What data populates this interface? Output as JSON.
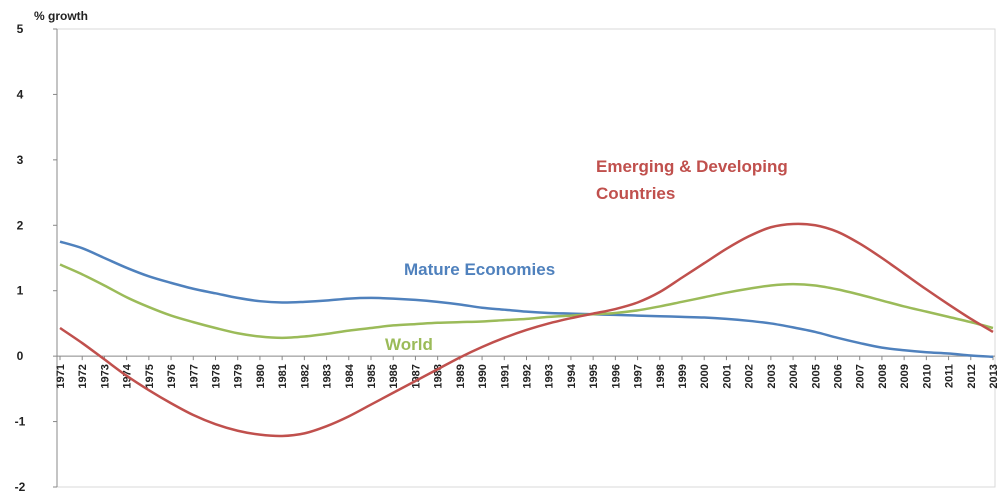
{
  "chart_data": {
    "type": "line",
    "y_label": "% growth",
    "x": [
      "1971",
      "1972",
      "1973",
      "1974",
      "1975",
      "1976",
      "1977",
      "1978",
      "1979",
      "1980",
      "1981",
      "1982",
      "1983",
      "1984",
      "1985",
      "1986",
      "1987",
      "1988",
      "1989",
      "1990",
      "1991",
      "1992",
      "1993",
      "1994",
      "1995",
      "1996",
      "1997",
      "1998",
      "1999",
      "2000",
      "2001",
      "2002",
      "2003",
      "2004",
      "2005",
      "2006",
      "2007",
      "2008",
      "2009",
      "2010",
      "2011",
      "2012",
      "2013"
    ],
    "series": [
      {
        "name": "Mature Economies",
        "color": "#4f81bd",
        "values": [
          1.75,
          1.65,
          1.5,
          1.35,
          1.22,
          1.12,
          1.03,
          0.96,
          0.89,
          0.84,
          0.82,
          0.83,
          0.85,
          0.88,
          0.89,
          0.88,
          0.86,
          0.83,
          0.79,
          0.74,
          0.71,
          0.68,
          0.66,
          0.65,
          0.64,
          0.63,
          0.62,
          0.61,
          0.6,
          0.59,
          0.57,
          0.54,
          0.5,
          0.44,
          0.37,
          0.28,
          0.2,
          0.13,
          0.09,
          0.06,
          0.04,
          0.01,
          -0.01
        ]
      },
      {
        "name": "World",
        "color": "#9bbb59",
        "values": [
          1.4,
          1.25,
          1.08,
          0.9,
          0.75,
          0.62,
          0.52,
          0.43,
          0.35,
          0.3,
          0.28,
          0.3,
          0.34,
          0.39,
          0.43,
          0.47,
          0.49,
          0.51,
          0.52,
          0.53,
          0.55,
          0.57,
          0.6,
          0.62,
          0.64,
          0.66,
          0.7,
          0.76,
          0.83,
          0.9,
          0.97,
          1.03,
          1.08,
          1.1,
          1.08,
          1.02,
          0.94,
          0.85,
          0.76,
          0.68,
          0.6,
          0.52,
          0.43
        ]
      },
      {
        "name": "Emerging & Developing Countries",
        "color": "#c0504d",
        "values": [
          0.43,
          0.2,
          -0.05,
          -0.3,
          -0.52,
          -0.72,
          -0.9,
          -1.04,
          -1.14,
          -1.2,
          -1.22,
          -1.18,
          -1.07,
          -0.92,
          -0.74,
          -0.56,
          -0.38,
          -0.2,
          -0.02,
          0.14,
          0.28,
          0.4,
          0.5,
          0.58,
          0.65,
          0.72,
          0.82,
          0.98,
          1.2,
          1.42,
          1.64,
          1.83,
          1.97,
          2.02,
          2.0,
          1.9,
          1.72,
          1.5,
          1.26,
          1.02,
          0.79,
          0.57,
          0.37
        ]
      }
    ],
    "ylim": [
      -2,
      5
    ],
    "yticks": [
      -2,
      -1,
      0,
      1,
      2,
      3,
      4,
      5
    ]
  }
}
